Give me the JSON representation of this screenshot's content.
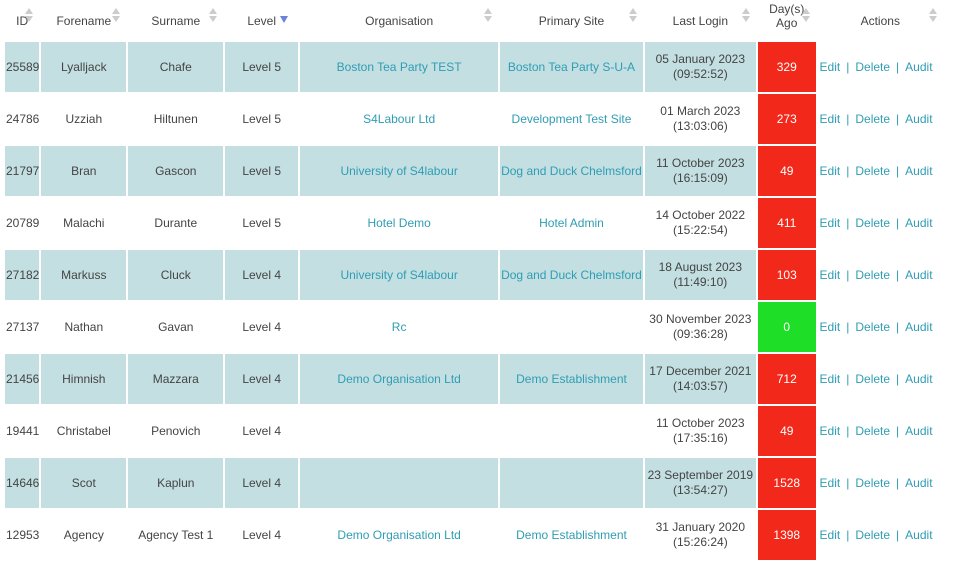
{
  "headers": {
    "id": "ID",
    "forename": "Forename",
    "surname": "Surname",
    "level": "Level",
    "organisation": "Organisation",
    "primary_site": "Primary Site",
    "last_login": "Last Login",
    "days_ago": "Day(s) Ago",
    "actions": "Actions"
  },
  "actions": {
    "edit": "Edit",
    "delete": "Delete",
    "audit": "Audit",
    "separator": "|"
  },
  "colors": {
    "row_shaded": "#c3dfe1",
    "days_red": "#f2291a",
    "days_green": "#1ede27",
    "link": "#2f9db4"
  },
  "rows": [
    {
      "id": "25589",
      "forename": "Lyalljack",
      "surname": "Chafe",
      "level": "Level 5",
      "organisation": "Boston Tea Party TEST",
      "primary_site": "Boston Tea Party S-U-A",
      "login_date": "05 January 2023",
      "login_time": "(09:52:52)",
      "days": "329",
      "status": "red"
    },
    {
      "id": "24786",
      "forename": "Uzziah",
      "surname": "Hiltunen",
      "level": "Level 5",
      "organisation": "S4Labour Ltd",
      "primary_site": "Development Test Site",
      "login_date": "01 March 2023",
      "login_time": "(13:03:06)",
      "days": "273",
      "status": "red"
    },
    {
      "id": "21797",
      "forename": "Bran",
      "surname": "Gascon",
      "level": "Level 5",
      "organisation": "University of S4labour",
      "primary_site": "Dog and Duck Chelmsford",
      "login_date": "11 October 2023",
      "login_time": "(16:15:09)",
      "days": "49",
      "status": "red"
    },
    {
      "id": "20789",
      "forename": "Malachi",
      "surname": "Durante",
      "level": "Level 5",
      "organisation": "Hotel Demo",
      "primary_site": "Hotel Admin",
      "login_date": "14 October 2022",
      "login_time": "(15:22:54)",
      "days": "411",
      "status": "red"
    },
    {
      "id": "27182",
      "forename": "Markuss",
      "surname": "Cluck",
      "level": "Level 4",
      "organisation": "University of S4labour",
      "primary_site": "Dog and Duck Chelmsford",
      "login_date": "18 August 2023",
      "login_time": "(11:49:10)",
      "days": "103",
      "status": "red"
    },
    {
      "id": "27137",
      "forename": "Nathan",
      "surname": "Gavan",
      "level": "Level 4",
      "organisation": "Rc",
      "primary_site": "",
      "login_date": "30 November 2023",
      "login_time": "(09:36:28)",
      "days": "0",
      "status": "green"
    },
    {
      "id": "21456",
      "forename": "Himnish",
      "surname": "Mazzara",
      "level": "Level 4",
      "organisation": "Demo Organisation Ltd",
      "primary_site": "Demo Establishment",
      "login_date": "17 December 2021",
      "login_time": "(14:03:57)",
      "days": "712",
      "status": "red"
    },
    {
      "id": "19441",
      "forename": "Christabel",
      "surname": "Penovich",
      "level": "Level 4",
      "organisation": "",
      "primary_site": "",
      "login_date": "11 October 2023",
      "login_time": "(17:35:16)",
      "days": "49",
      "status": "red"
    },
    {
      "id": "14646",
      "forename": "Scot",
      "surname": "Kaplun",
      "level": "Level 4",
      "organisation": "",
      "primary_site": "",
      "login_date": "23 September 2019",
      "login_time": "(13:54:27)",
      "days": "1528",
      "status": "red"
    },
    {
      "id": "12953",
      "forename": "Agency",
      "surname": "Agency Test 1",
      "level": "Level 4",
      "organisation": "Demo Organisation Ltd",
      "primary_site": "Demo Establishment",
      "login_date": "31 January 2020",
      "login_time": "(15:26:24)",
      "days": "1398",
      "status": "red"
    }
  ]
}
